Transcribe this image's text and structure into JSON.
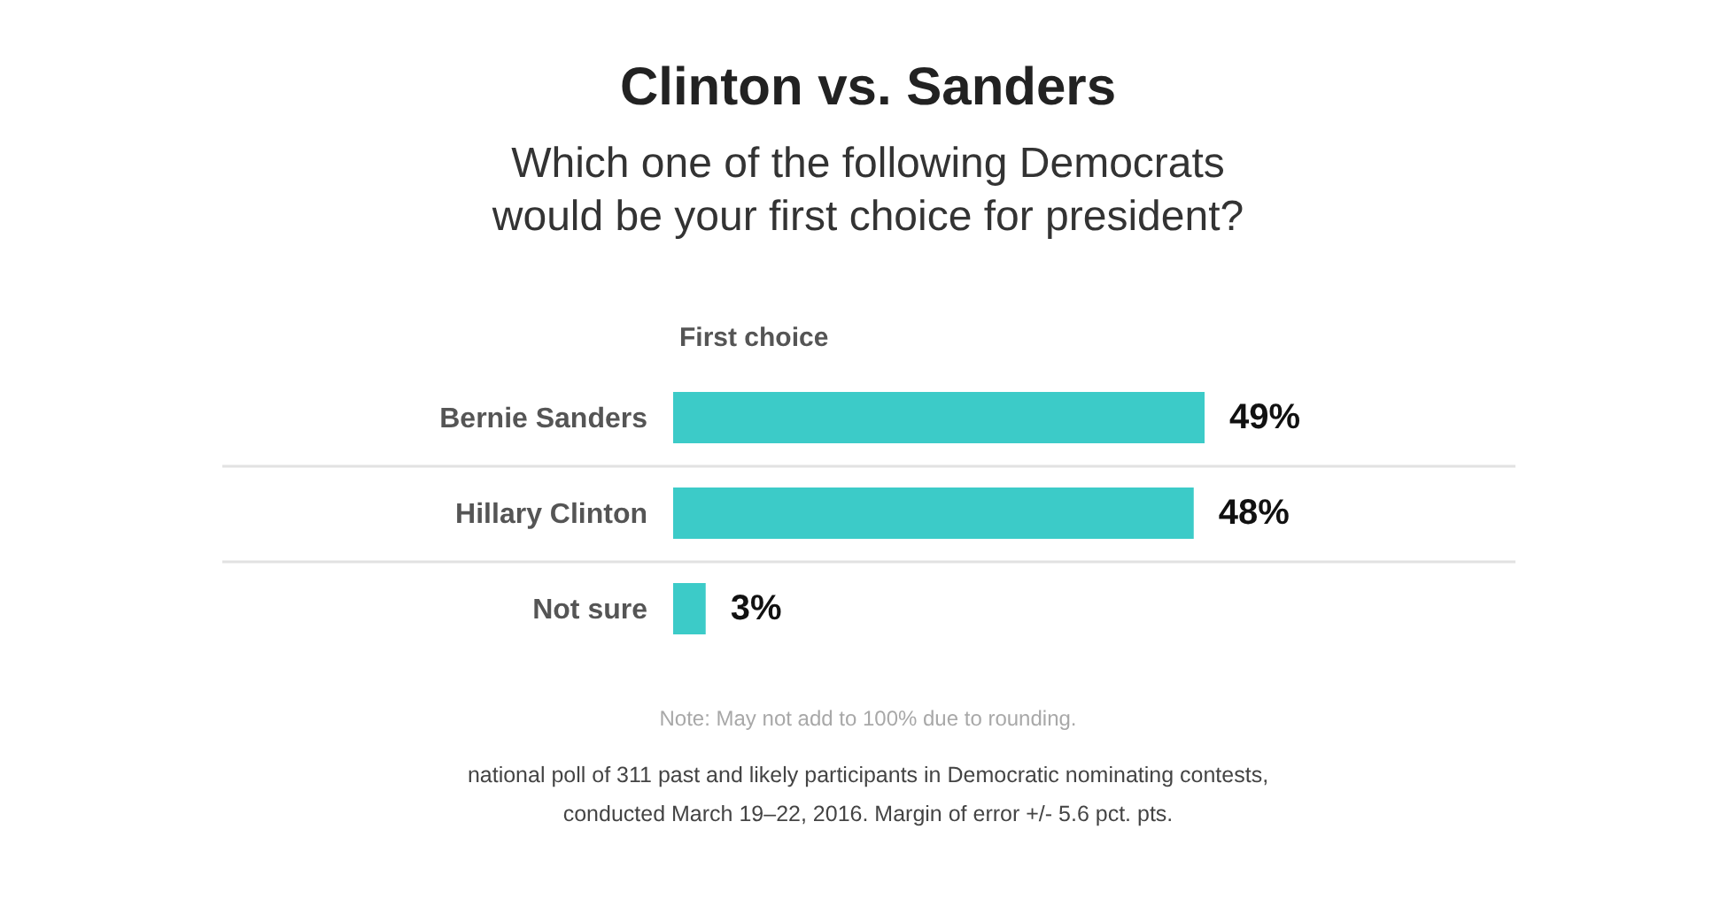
{
  "chart_data": {
    "type": "bar",
    "orientation": "horizontal",
    "title": "Clinton vs. Sanders",
    "subtitle": "Which one of the following Democrats would be your first choice for president?",
    "xlabel": "First choice",
    "categories": [
      "Bernie Sanders",
      "Hillary Clinton",
      "Not sure"
    ],
    "values": [
      49,
      48,
      3
    ],
    "value_labels": [
      "49%",
      "48%",
      "3%"
    ],
    "color": "#3ccbc8",
    "grid": "y",
    "tick_labels": "y",
    "annotations": [
      "Note: May not add to 100% due to rounding.",
      "national poll of 311 past and likely participants in Democratic nominating contests, conducted March 19–22, 2016. Margin of error +/- 5.6 pct. pts."
    ]
  }
}
